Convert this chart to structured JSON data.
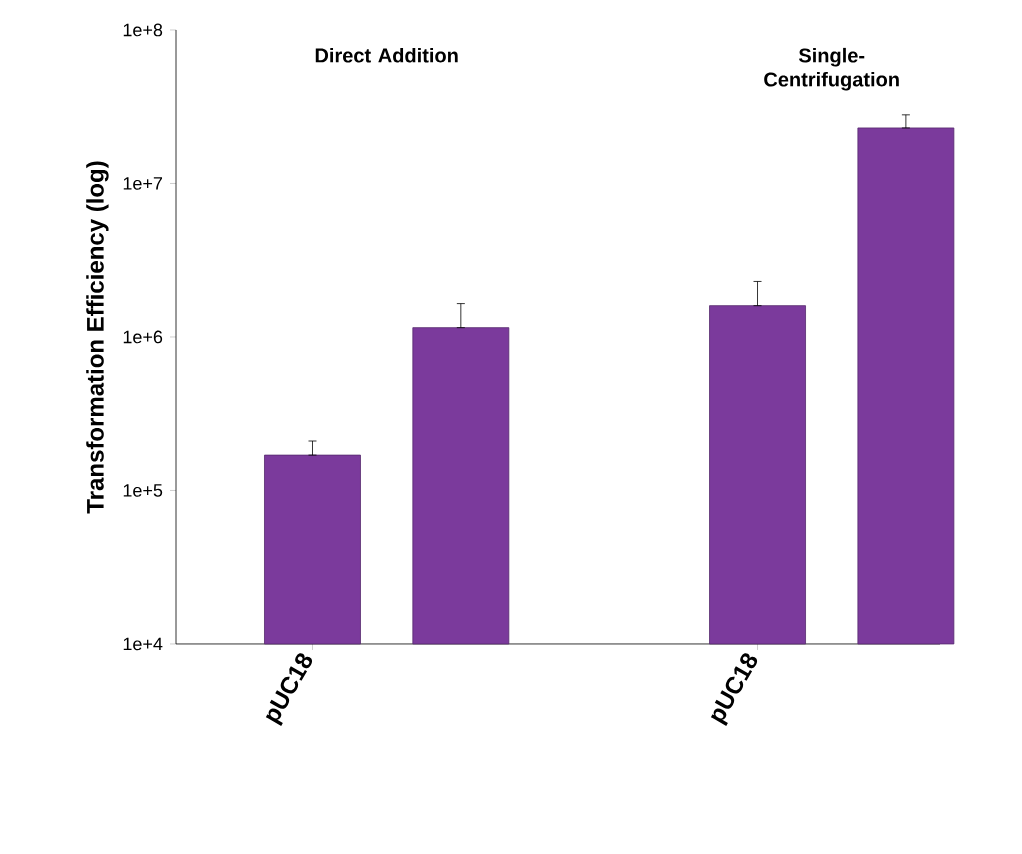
{
  "chart_data": {
    "type": "bar",
    "ylabel": "Transformation Efficiency (log)",
    "categories": [
      "pUC18",
      null,
      null,
      "pUC18",
      null
    ],
    "values": [
      170000,
      1150000,
      null,
      1600000,
      23000000
    ],
    "errors": [
      [
        170000,
        210000
      ],
      [
        1150000,
        1650000
      ],
      null,
      [
        1600000,
        2300000
      ],
      [
        23000000,
        28000000
      ]
    ],
    "color": "#7b3a9c",
    "log": true,
    "ylim": [
      10000,
      100000000
    ],
    "yticks": [
      {
        "value": 10000,
        "label": "1e+4"
      },
      {
        "value": 100000,
        "label": "1e+5"
      },
      {
        "value": 1000000,
        "label": "1e+6"
      },
      {
        "value": 10000000,
        "label": "1e+7"
      },
      {
        "value": 100000000,
        "label": "1e+8"
      }
    ],
    "annotations": [
      "Direct Addition",
      "Single-Centrifugation"
    ],
    "grid": false
  }
}
